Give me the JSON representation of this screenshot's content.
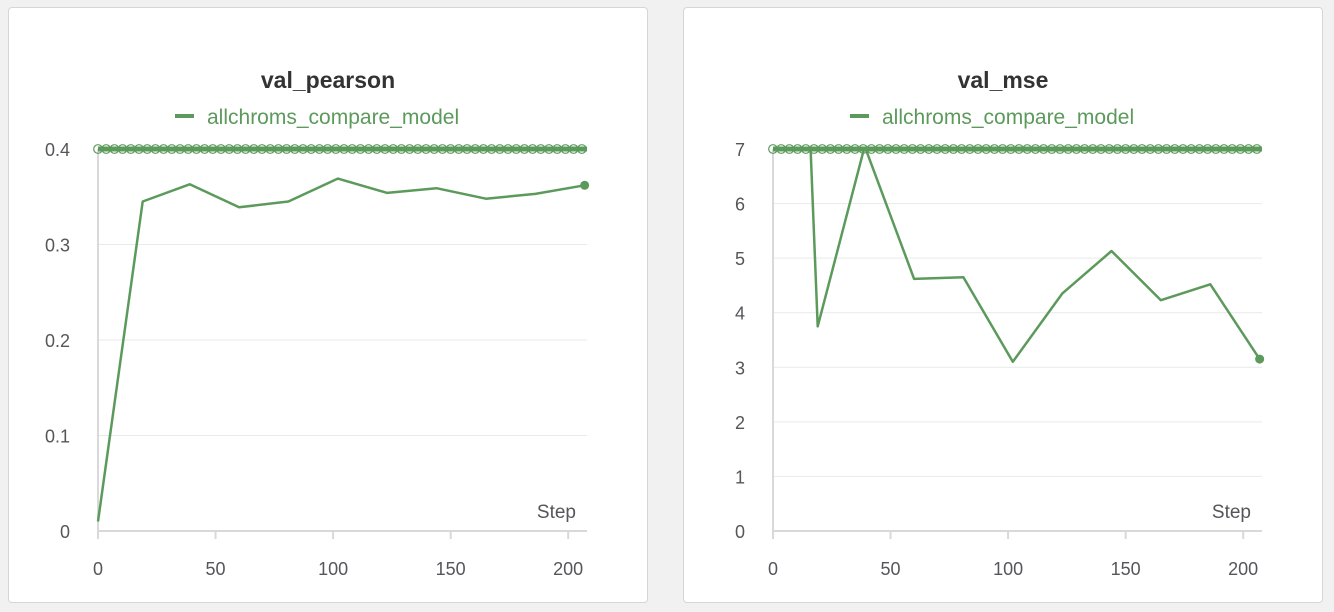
{
  "colors": {
    "series": "#5c9a5c",
    "grid": "#e9e9ea",
    "axis": "#d9d9db",
    "text": "#55565a",
    "title": "#333333"
  },
  "chart_data": [
    {
      "type": "line",
      "title": "val_pearson",
      "xlabel": "Step",
      "ylabel": "",
      "xlim": [
        0,
        208
      ],
      "ylim": [
        0,
        0.4
      ],
      "xticks": [
        0,
        50,
        100,
        150,
        200
      ],
      "yticks": [
        0,
        0.1,
        0.2,
        0.3,
        0.4
      ],
      "ytick_labels": [
        "0",
        "0.1",
        "0.2",
        "0.3",
        "0.4"
      ],
      "grid": true,
      "legend": "top-center",
      "series": [
        {
          "name": "allchroms_compare_model",
          "color": "#5c9a5c",
          "x": [
            0,
            19,
            39,
            60,
            81,
            102,
            123,
            144,
            165,
            186,
            207
          ],
          "y": [
            0.01,
            0.345,
            0.363,
            0.339,
            0.345,
            0.369,
            0.354,
            0.359,
            0.348,
            0.353,
            0.362
          ]
        }
      ]
    },
    {
      "type": "line",
      "title": "val_mse",
      "xlabel": "Step",
      "ylabel": "",
      "xlim": [
        0,
        208
      ],
      "ylim": [
        0,
        7
      ],
      "xticks": [
        0,
        50,
        100,
        150,
        200
      ],
      "yticks": [
        0,
        1,
        2,
        3,
        4,
        5,
        6,
        7
      ],
      "ytick_labels": [
        "0",
        "1",
        "2",
        "3",
        "4",
        "5",
        "6",
        "7"
      ],
      "grid": true,
      "legend": "top-center",
      "series": [
        {
          "name": "allchroms_compare_model",
          "color": "#5c9a5c",
          "x": [
            16,
            19,
            39,
            60,
            81,
            102,
            123,
            144,
            165,
            186,
            207
          ],
          "y": [
            7.0,
            3.75,
            7.05,
            4.62,
            4.65,
            3.1,
            4.35,
            5.13,
            4.23,
            4.52,
            3.15
          ]
        }
      ]
    }
  ]
}
